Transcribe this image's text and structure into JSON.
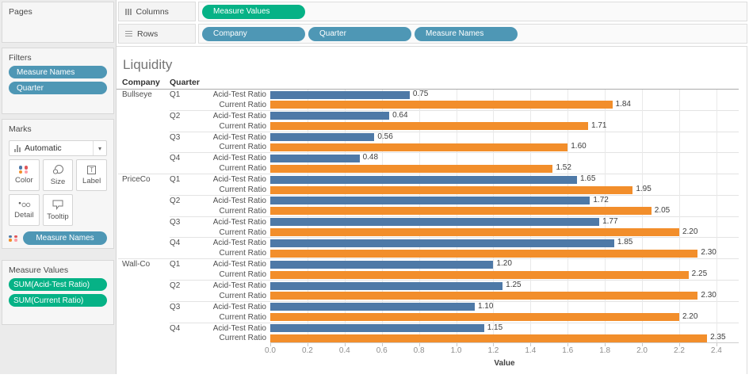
{
  "colors": {
    "pill_blue": "#4e97b5",
    "pill_green": "#06b286",
    "bar_blue": "#4E79A7",
    "bar_orange": "#F28E2B"
  },
  "pages": {
    "label": "Pages"
  },
  "filters": {
    "label": "Filters",
    "pills": [
      "Measure Names",
      "Quarter"
    ]
  },
  "marks": {
    "label": "Marks",
    "mark_type": "Automatic",
    "buttons": [
      {
        "label": "Color",
        "icon": "color-dots-icon"
      },
      {
        "label": "Size",
        "icon": "size-circles-icon"
      },
      {
        "label": "Label",
        "icon": "label-t-icon"
      },
      {
        "label": "Detail",
        "icon": "detail-dots-icon"
      },
      {
        "label": "Tooltip",
        "icon": "tooltip-bubble-icon"
      }
    ],
    "pill": "Measure Names"
  },
  "measure_values": {
    "label": "Measure Values",
    "pills": [
      "SUM(Acid-Test Ratio)",
      "SUM(Current Ratio)"
    ]
  },
  "shelves": {
    "columns": {
      "label": "Columns",
      "icon": "columns-icon",
      "pills": [
        "Measure Values"
      ]
    },
    "rows": {
      "label": "Rows",
      "icon": "rows-icon",
      "pills": [
        "Company",
        "Quarter",
        "Measure Names"
      ]
    }
  },
  "chart_data": {
    "type": "bar",
    "title": "Liquidity",
    "row_headers": [
      "Company",
      "Quarter"
    ],
    "xlabel": "Value",
    "xlim": [
      0,
      2.52
    ],
    "xticks": [
      0.0,
      0.2,
      0.4,
      0.6,
      0.8,
      1.0,
      1.2,
      1.4,
      1.6,
      1.8,
      2.0,
      2.2,
      2.4
    ],
    "grid": true,
    "series": [
      "Acid-Test Ratio",
      "Current Ratio"
    ],
    "series_colors": [
      "#4E79A7",
      "#F28E2B"
    ],
    "groups": [
      {
        "company": "Bullseye",
        "quarters": [
          {
            "quarter": "Q1",
            "values": [
              0.75,
              1.84
            ]
          },
          {
            "quarter": "Q2",
            "values": [
              0.64,
              1.71
            ]
          },
          {
            "quarter": "Q3",
            "values": [
              0.56,
              1.6
            ]
          },
          {
            "quarter": "Q4",
            "values": [
              0.48,
              1.52
            ]
          }
        ]
      },
      {
        "company": "PriceCo",
        "quarters": [
          {
            "quarter": "Q1",
            "values": [
              1.65,
              1.95
            ]
          },
          {
            "quarter": "Q2",
            "values": [
              1.72,
              2.05
            ]
          },
          {
            "quarter": "Q3",
            "values": [
              1.77,
              2.2
            ]
          },
          {
            "quarter": "Q4",
            "values": [
              1.85,
              2.3
            ]
          }
        ]
      },
      {
        "company": "Wall-Co",
        "quarters": [
          {
            "quarter": "Q1",
            "values": [
              1.2,
              2.25
            ]
          },
          {
            "quarter": "Q2",
            "values": [
              1.25,
              2.3
            ]
          },
          {
            "quarter": "Q3",
            "values": [
              1.1,
              2.2
            ]
          },
          {
            "quarter": "Q4",
            "values": [
              1.15,
              2.35
            ]
          }
        ]
      }
    ]
  }
}
